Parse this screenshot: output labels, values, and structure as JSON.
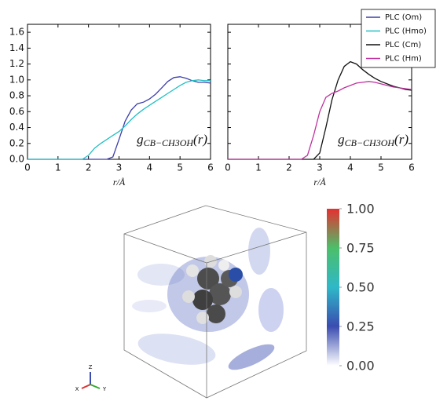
{
  "chart_data": [
    {
      "type": "line",
      "xlabel": "r/Å",
      "annotation": {
        "symbol": "g",
        "subscript": "CB−CH3OH",
        "argument": "(r)"
      },
      "x": [
        0,
        1.8,
        2.0,
        2.2,
        2.4,
        2.6,
        2.8,
        3.0,
        3.2,
        3.4,
        3.6,
        3.8,
        4.0,
        4.2,
        4.4,
        4.6,
        4.8,
        5.0,
        5.2,
        5.4,
        5.6,
        5.8,
        6.0
      ],
      "series": [
        {
          "name": "PLC (Om)",
          "color": "#3b3fa8",
          "values": [
            0,
            0,
            0,
            0,
            0,
            0,
            0.03,
            0.25,
            0.48,
            0.62,
            0.7,
            0.72,
            0.76,
            0.82,
            0.9,
            0.98,
            1.03,
            1.04,
            1.02,
            0.99,
            0.97,
            0.97,
            0.96
          ]
        },
        {
          "name": "PLC (Hmo)",
          "color": "#22bfc4",
          "values": [
            0,
            0,
            0.05,
            0.14,
            0.2,
            0.25,
            0.3,
            0.35,
            0.42,
            0.5,
            0.57,
            0.63,
            0.68,
            0.73,
            0.78,
            0.83,
            0.88,
            0.93,
            0.97,
            0.99,
            1.0,
            0.99,
            0.99
          ]
        }
      ],
      "xlim": [
        0,
        6
      ],
      "xticks": [
        0,
        1,
        2,
        3,
        4,
        5,
        6
      ],
      "ylim": [
        0,
        1.7
      ],
      "yticks": [
        {
          "value": 0,
          "label": "0.0"
        },
        {
          "value": 0.2,
          "label": "0.2"
        },
        {
          "value": 0.4,
          "label": "0.4"
        },
        {
          "value": 0.6,
          "label": "0.6"
        },
        {
          "value": 0.8,
          "label": "0.8"
        },
        {
          "value": 1.0,
          "label": "1.0"
        },
        {
          "value": 1.2,
          "label": "1.2"
        },
        {
          "value": 1.4,
          "label": "1.4"
        },
        {
          "value": 1.6,
          "label": "1.6"
        }
      ]
    },
    {
      "type": "line",
      "xlabel": "r/Å",
      "annotation": {
        "symbol": "g",
        "subscript": "CB−CH3OH",
        "argument": "(r)"
      },
      "x": [
        0,
        2.4,
        2.6,
        2.8,
        3.0,
        3.2,
        3.4,
        3.6,
        3.8,
        4.0,
        4.2,
        4.4,
        4.6,
        4.8,
        5.0,
        5.2,
        5.4,
        5.6,
        5.8,
        6.0
      ],
      "series": [
        {
          "name": "PLC (Cm)",
          "color": "#111111",
          "values": [
            0,
            0,
            0,
            0,
            0.08,
            0.4,
            0.75,
            1.0,
            1.17,
            1.23,
            1.2,
            1.13,
            1.07,
            1.02,
            0.98,
            0.95,
            0.92,
            0.9,
            0.88,
            0.87
          ]
        },
        {
          "name": "PLC (Hm)",
          "color": "#c0309f",
          "values": [
            0,
            0,
            0.05,
            0.3,
            0.6,
            0.78,
            0.83,
            0.86,
            0.9,
            0.93,
            0.96,
            0.97,
            0.98,
            0.97,
            0.95,
            0.93,
            0.91,
            0.9,
            0.89,
            0.88
          ]
        }
      ],
      "xlim": [
        0,
        6
      ],
      "xticks": [
        0,
        1,
        2,
        3,
        4,
        5,
        6
      ],
      "ylim": [
        0,
        1.7
      ],
      "yticks": [
        0,
        0.2,
        0.4,
        0.6,
        0.8,
        1.0,
        1.2,
        1.4,
        1.6
      ],
      "show_ytick_labels": false,
      "legend": "upper right"
    },
    {
      "type": "colorbar",
      "ylim": [
        0,
        1
      ],
      "colors": [
        "#ffffff",
        "#3a4cb0",
        "#2fb8c8",
        "#4cbf6a",
        "#e53030"
      ],
      "yticks": [
        {
          "value": 0,
          "label": "0.00"
        },
        {
          "value": 0.25,
          "label": "0.25"
        },
        {
          "value": 0.5,
          "label": "0.50"
        },
        {
          "value": 0.75,
          "label": "0.75"
        },
        {
          "value": 1,
          "label": "1.00"
        }
      ]
    }
  ],
  "axes_triad": {
    "z": "Z",
    "x": "X",
    "y": "Y"
  }
}
